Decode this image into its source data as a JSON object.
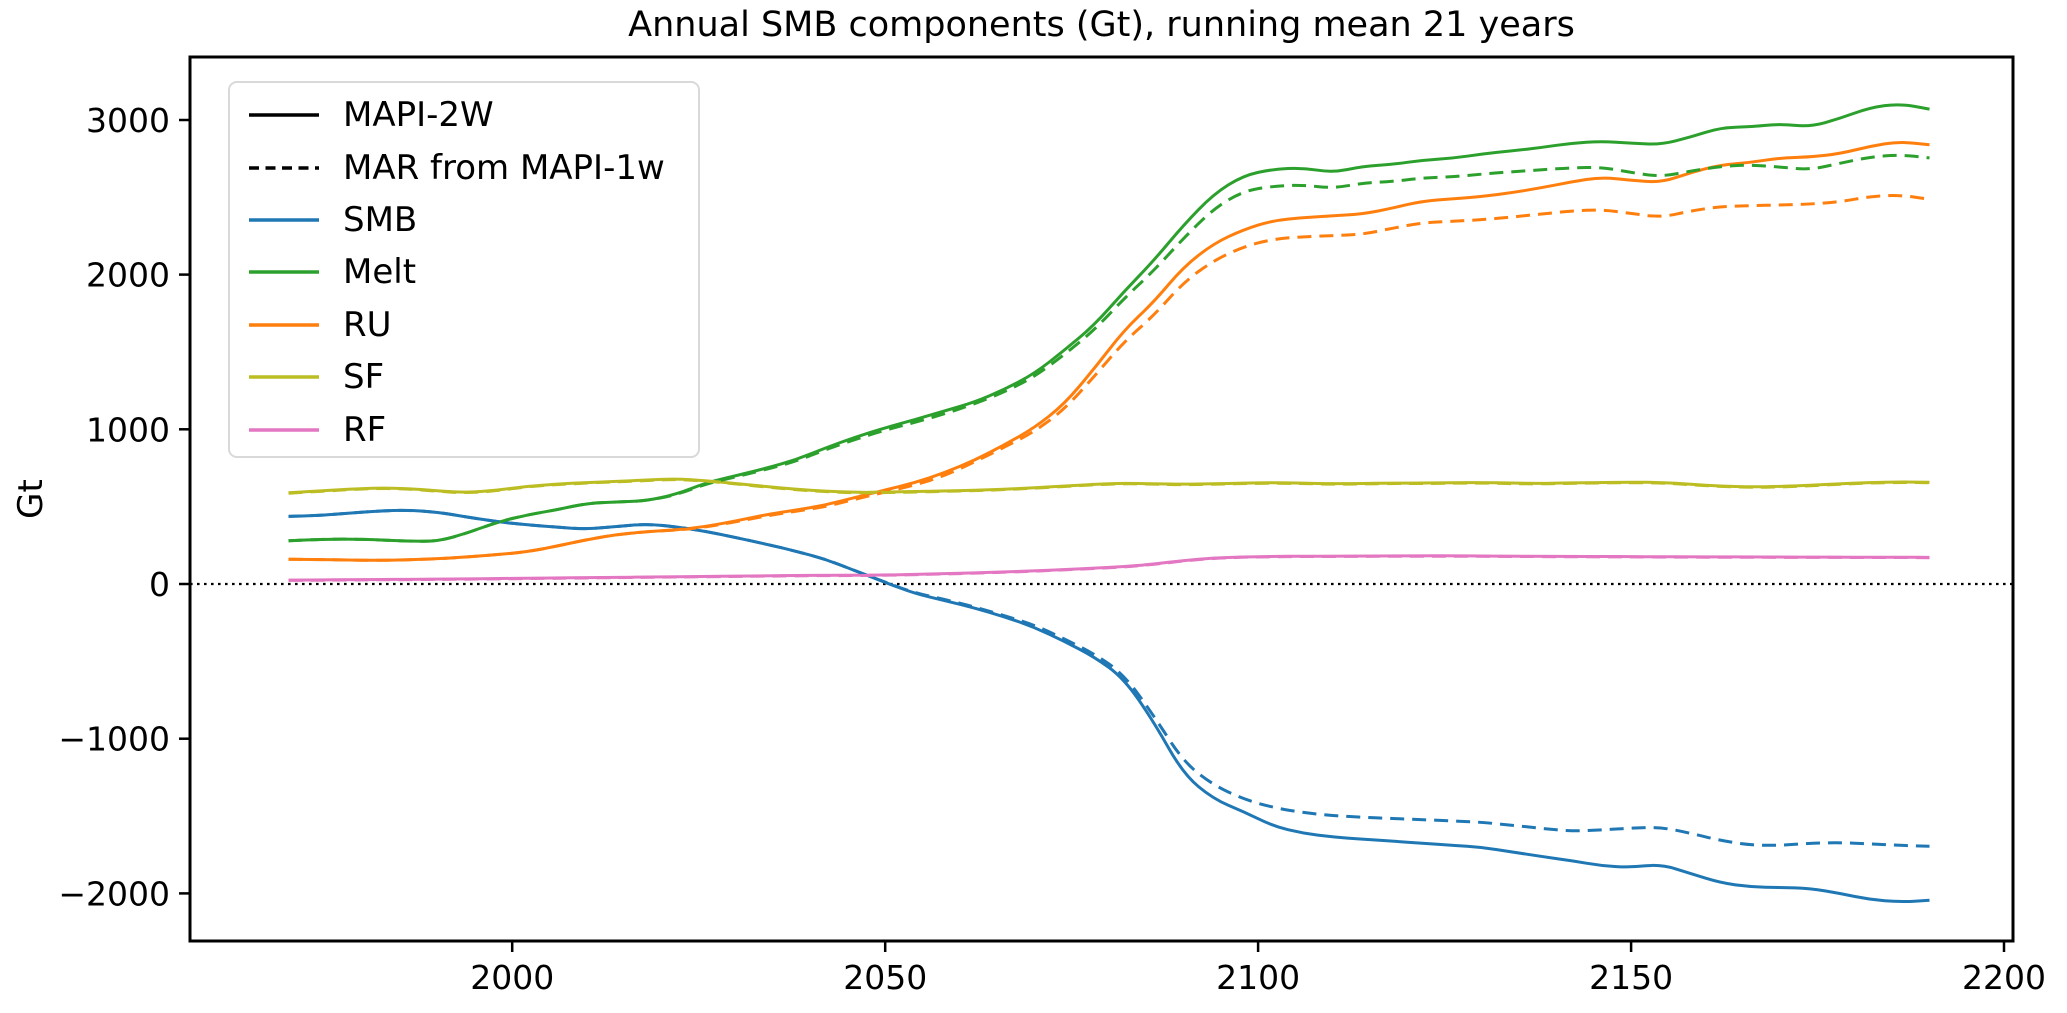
{
  "chart_data": {
    "type": "line",
    "title": "Annual SMB components (Gt), running mean 21 years",
    "ylabel": "Gt",
    "xlabel": "",
    "grid": false,
    "zero_line": true,
    "legend_position": "upper left",
    "xlim": [
      1956.8,
      2201.2
    ],
    "ylim": [
      -2308,
      3407
    ],
    "x_ticks": [
      2000,
      2050,
      2100,
      2150,
      2200
    ],
    "y_ticks": [
      3000,
      2000,
      1000,
      0,
      -1000,
      -2000
    ],
    "legend": [
      {
        "label": "MAPI-2W",
        "color": "#000000",
        "style": "solid"
      },
      {
        "label": "MAR from MAPI-1w",
        "color": "#000000",
        "style": "dashed"
      },
      {
        "label": "SMB",
        "color": "#1f77b4",
        "style": "solid"
      },
      {
        "label": "Melt",
        "color": "#2ca02c",
        "style": "solid"
      },
      {
        "label": "RU",
        "color": "#ff7f0e",
        "style": "solid"
      },
      {
        "label": "SF",
        "color": "#bcbd22",
        "style": "solid"
      },
      {
        "label": "RF",
        "color": "#e377c2",
        "style": "solid"
      }
    ],
    "x": [
      1970,
      1974,
      1978,
      1982,
      1986,
      1990,
      1994,
      1998,
      2002,
      2006,
      2010,
      2014,
      2018,
      2022,
      2026,
      2030,
      2034,
      2038,
      2042,
      2046,
      2050,
      2054,
      2058,
      2062,
      2066,
      2070,
      2074,
      2078,
      2082,
      2086,
      2090,
      2094,
      2098,
      2102,
      2106,
      2110,
      2114,
      2118,
      2122,
      2126,
      2130,
      2134,
      2138,
      2142,
      2146,
      2150,
      2154,
      2158,
      2162,
      2166,
      2170,
      2174,
      2178,
      2182,
      2186,
      2190
    ],
    "series": [
      {
        "id": "smb-mapi2w",
        "component": "SMB",
        "run": "MAPI-2W",
        "color": "#1f77b4",
        "style": "solid",
        "values": [
          437,
          442,
          458,
          472,
          478,
          465,
          432,
          403,
          382,
          368,
          354,
          372,
          388,
          370,
          340,
          300,
          258,
          212,
          160,
          85,
          10,
          -62,
          -108,
          -155,
          -212,
          -280,
          -370,
          -470,
          -610,
          -890,
          -1230,
          -1390,
          -1470,
          -1565,
          -1612,
          -1635,
          -1650,
          -1662,
          -1676,
          -1690,
          -1702,
          -1732,
          -1762,
          -1788,
          -1822,
          -1832,
          -1812,
          -1872,
          -1932,
          -1958,
          -1962,
          -1968,
          -2000,
          -2040,
          -2056,
          -2045
        ]
      },
      {
        "id": "melt-mapi2w",
        "component": "Melt",
        "run": "MAPI-2W",
        "color": "#2ca02c",
        "style": "solid",
        "values": [
          280,
          288,
          291,
          286,
          277,
          275,
          330,
          400,
          447,
          480,
          522,
          530,
          538,
          580,
          655,
          700,
          748,
          802,
          880,
          950,
          1010,
          1062,
          1120,
          1175,
          1258,
          1360,
          1510,
          1672,
          1890,
          2090,
          2320,
          2520,
          2640,
          2682,
          2690,
          2660,
          2700,
          2712,
          2740,
          2752,
          2780,
          2800,
          2822,
          2850,
          2862,
          2850,
          2840,
          2890,
          2950,
          2955,
          2975,
          2955,
          3010,
          3080,
          3105,
          3070
        ]
      },
      {
        "id": "ru-mapi2w",
        "component": "RU",
        "run": "MAPI-2W",
        "color": "#ff7f0e",
        "style": "solid",
        "values": [
          160,
          158,
          155,
          153,
          156,
          163,
          175,
          190,
          208,
          245,
          287,
          320,
          338,
          350,
          372,
          408,
          448,
          478,
          510,
          560,
          608,
          655,
          720,
          800,
          900,
          1010,
          1162,
          1390,
          1640,
          1822,
          2050,
          2200,
          2290,
          2350,
          2368,
          2380,
          2392,
          2430,
          2475,
          2490,
          2505,
          2530,
          2562,
          2600,
          2630,
          2610,
          2595,
          2660,
          2710,
          2725,
          2755,
          2760,
          2782,
          2830,
          2860,
          2840
        ]
      },
      {
        "id": "sf-mapi2w",
        "component": "SF",
        "run": "MAPI-2W",
        "color": "#bcbd22",
        "style": "solid",
        "values": [
          590,
          601,
          613,
          621,
          618,
          602,
          591,
          606,
          632,
          646,
          656,
          663,
          672,
          680,
          668,
          650,
          630,
          612,
          600,
          592,
          594,
          598,
          602,
          606,
          613,
          622,
          633,
          645,
          652,
          648,
          645,
          648,
          652,
          655,
          652,
          648,
          650,
          653,
          652,
          655,
          656,
          652,
          650,
          654,
          656,
          658,
          657,
          645,
          633,
          628,
          630,
          638,
          648,
          656,
          660,
          658
        ]
      },
      {
        "id": "rf-mapi2w",
        "component": "RF",
        "run": "MAPI-2W",
        "color": "#e377c2",
        "style": "solid",
        "values": [
          25,
          26,
          28,
          29,
          30,
          32,
          33,
          35,
          37,
          39,
          41,
          43,
          45,
          47,
          49,
          51,
          53,
          55,
          56,
          57,
          58,
          62,
          67,
          72,
          78,
          85,
          93,
          102,
          112,
          128,
          152,
          168,
          175,
          178,
          180,
          180,
          181,
          181,
          182,
          182,
          181,
          180,
          179,
          178,
          178,
          177,
          176,
          176,
          175,
          175,
          174,
          174,
          174,
          173,
          173,
          172
        ]
      },
      {
        "id": "smb-mar1w",
        "component": "SMB",
        "run": "MAR from MAPI-1w",
        "color": "#1f77b4",
        "style": "dashed",
        "values": [
          437,
          442,
          458,
          472,
          478,
          465,
          432,
          403,
          382,
          368,
          354,
          372,
          388,
          370,
          340,
          300,
          258,
          212,
          160,
          85,
          12,
          -58,
          -100,
          -148,
          -205,
          -265,
          -355,
          -450,
          -585,
          -850,
          -1150,
          -1300,
          -1390,
          -1445,
          -1478,
          -1497,
          -1508,
          -1516,
          -1524,
          -1532,
          -1540,
          -1560,
          -1580,
          -1598,
          -1590,
          -1578,
          -1572,
          -1612,
          -1658,
          -1688,
          -1690,
          -1676,
          -1672,
          -1680,
          -1690,
          -1695
        ]
      },
      {
        "id": "melt-mar1w",
        "component": "Melt",
        "run": "MAR from MAPI-1w",
        "color": "#2ca02c",
        "style": "dashed",
        "values": [
          280,
          288,
          291,
          286,
          277,
          275,
          330,
          400,
          447,
          480,
          522,
          530,
          538,
          576,
          648,
          693,
          740,
          793,
          868,
          936,
          995,
          1045,
          1100,
          1165,
          1242,
          1340,
          1482,
          1640,
          1845,
          2025,
          2235,
          2425,
          2540,
          2572,
          2580,
          2558,
          2592,
          2602,
          2625,
          2632,
          2650,
          2665,
          2678,
          2690,
          2695,
          2660,
          2633,
          2670,
          2700,
          2710,
          2695,
          2678,
          2720,
          2760,
          2775,
          2755
        ]
      },
      {
        "id": "ru-mar1w",
        "component": "RU",
        "run": "MAR from MAPI-1w",
        "color": "#ff7f0e",
        "style": "dashed",
        "values": [
          160,
          158,
          155,
          153,
          156,
          163,
          175,
          190,
          208,
          245,
          287,
          320,
          338,
          348,
          368,
          402,
          440,
          470,
          500,
          548,
          595,
          640,
          700,
          790,
          885,
          985,
          1128,
          1340,
          1565,
          1735,
          1950,
          2090,
          2180,
          2230,
          2245,
          2252,
          2260,
          2300,
          2335,
          2345,
          2355,
          2372,
          2392,
          2412,
          2420,
          2396,
          2370,
          2412,
          2440,
          2446,
          2450,
          2456,
          2470,
          2505,
          2515,
          2487
        ]
      },
      {
        "id": "sf-mar1w",
        "component": "SF",
        "run": "MAR from MAPI-1w",
        "color": "#bcbd22",
        "style": "dashed",
        "values": [
          587,
          598,
          610,
          618,
          615,
          599,
          588,
          603,
          629,
          643,
          653,
          660,
          669,
          677,
          665,
          647,
          627,
          609,
          597,
          589,
          591,
          595,
          599,
          603,
          610,
          619,
          630,
          642,
          649,
          645,
          642,
          645,
          649,
          652,
          649,
          645,
          647,
          650,
          649,
          652,
          653,
          649,
          647,
          651,
          653,
          655,
          654,
          642,
          630,
          625,
          627,
          635,
          645,
          653,
          657,
          655
        ]
      },
      {
        "id": "rf-mar1w",
        "component": "RF",
        "run": "MAR from MAPI-1w",
        "color": "#e377c2",
        "style": "dashed",
        "values": [
          23,
          24,
          26,
          27,
          28,
          30,
          31,
          33,
          35,
          37,
          39,
          41,
          43,
          45,
          47,
          49,
          51,
          53,
          54,
          55,
          56,
          60,
          65,
          70,
          76,
          83,
          91,
          100,
          110,
          126,
          150,
          166,
          173,
          176,
          178,
          178,
          179,
          179,
          180,
          180,
          179,
          178,
          177,
          176,
          176,
          175,
          174,
          174,
          173,
          173,
          172,
          172,
          172,
          171,
          171,
          170
        ]
      }
    ]
  }
}
